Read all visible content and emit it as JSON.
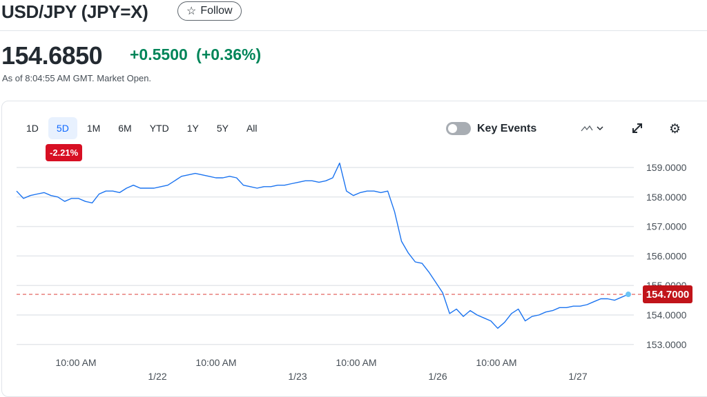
{
  "header": {
    "title": "USD/JPY (JPY=X)",
    "follow_label": "Follow",
    "follow_icon": "star-outline-icon"
  },
  "quote": {
    "price": "154.6850",
    "change": "+0.5500",
    "change_pct": "(+0.36%)",
    "as_of": "As of 8:04:55 AM GMT. Market Open.",
    "change_color": "#008559"
  },
  "toolbar": {
    "ranges": [
      "1D",
      "5D",
      "1M",
      "6M",
      "YTD",
      "1Y",
      "5Y",
      "All"
    ],
    "selected_range": "5D",
    "range_change_badge": "-2.21%",
    "key_events_label": "Key Events",
    "key_events_on": false
  },
  "chart_data": {
    "type": "line",
    "line_color": "#1a73f0",
    "x_tick_labels": [
      "10:00 AM",
      "10:00 AM",
      "10:00 AM",
      "10:00 AM"
    ],
    "x_date_labels": [
      "1/22",
      "1/23",
      "1/26",
      "1/27"
    ],
    "y_ticks": [
      159,
      158,
      157,
      156,
      155,
      154,
      153
    ],
    "y_tick_labels": [
      "159.0000",
      "158.0000",
      "157.0000",
      "156.0000",
      "155.0000",
      "154.0000",
      "153.0000"
    ],
    "ylim": [
      152.9,
      159.4
    ],
    "grid": true,
    "current_value": 154.7,
    "current_label": "154.7000",
    "current_label_color": "#c1141a",
    "values": [
      158.2,
      157.95,
      158.05,
      158.1,
      158.15,
      158.05,
      158.0,
      157.85,
      157.95,
      157.95,
      157.85,
      157.8,
      158.1,
      158.2,
      158.2,
      158.15,
      158.3,
      158.4,
      158.3,
      158.3,
      158.3,
      158.35,
      158.4,
      158.55,
      158.7,
      158.75,
      158.8,
      158.75,
      158.7,
      158.65,
      158.65,
      158.7,
      158.65,
      158.4,
      158.35,
      158.3,
      158.35,
      158.35,
      158.4,
      158.4,
      158.45,
      158.5,
      158.55,
      158.55,
      158.5,
      158.55,
      158.65,
      159.15,
      158.2,
      158.05,
      158.15,
      158.2,
      158.2,
      158.15,
      158.2,
      157.5,
      156.5,
      156.1,
      155.8,
      155.75,
      155.45,
      155.1,
      154.75,
      154.05,
      154.2,
      153.95,
      154.15,
      154.0,
      153.9,
      153.8,
      153.55,
      153.75,
      154.05,
      154.2,
      153.8,
      153.95,
      154.0,
      154.1,
      154.15,
      154.25,
      154.25,
      154.3,
      154.3,
      154.35,
      154.45,
      154.55,
      154.55,
      154.5,
      154.6,
      154.7
    ]
  }
}
